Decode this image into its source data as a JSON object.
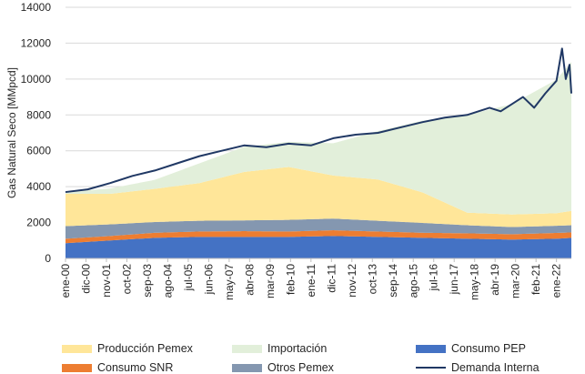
{
  "chart_data": {
    "type": "area",
    "ylabel": "Gas Natural Seco [MMpcd]",
    "xlabel": "",
    "ylim": [
      0,
      14000
    ],
    "yticks": [
      "0",
      "2000",
      "4000",
      "6000",
      "8000",
      "10000",
      "12000",
      "14000"
    ],
    "x_tick_labels": [
      "ene-00",
      "dic-00",
      "nov-01",
      "oct-02",
      "sep-03",
      "ago-04",
      "jul-05",
      "jun-06",
      "may-07",
      "abr-08",
      "mar-09",
      "feb-10",
      "ene-11",
      "dic-11",
      "nov-12",
      "oct-13",
      "sep-14",
      "ago-15",
      "jul-16",
      "jun-17",
      "may-18",
      "abr-19",
      "mar-20",
      "feb-21",
      "ene-22"
    ],
    "x_range": [
      "ene-00",
      "sep-22"
    ],
    "grid": true,
    "legend_position": "bottom",
    "stack_order": [
      "Consumo PEP",
      "Consumo SNR",
      "Otros Pemex",
      "Producción Pemex",
      "Importación"
    ],
    "series": [
      {
        "name": "Consumo PEP",
        "kind": "stacked-area",
        "color": "#4472c4",
        "points": [
          [
            "ene-00",
            850
          ],
          [
            "ene-02",
            1000
          ],
          [
            "ene-04",
            1150
          ],
          [
            "ene-06",
            1200
          ],
          [
            "ene-08",
            1200
          ],
          [
            "ene-10",
            1200
          ],
          [
            "ene-12",
            1250
          ],
          [
            "ene-14",
            1200
          ],
          [
            "ene-16",
            1150
          ],
          [
            "ene-18",
            1100
          ],
          [
            "ene-20",
            1050
          ],
          [
            "ene-22",
            1100
          ],
          [
            "sep-22",
            1150
          ]
        ]
      },
      {
        "name": "Consumo SNR",
        "kind": "stacked-area",
        "color": "#ed7d31",
        "points": [
          [
            "ene-00",
            250
          ],
          [
            "ene-02",
            250
          ],
          [
            "ene-04",
            280
          ],
          [
            "ene-06",
            300
          ],
          [
            "ene-08",
            320
          ],
          [
            "ene-10",
            300
          ],
          [
            "ene-12",
            320
          ],
          [
            "ene-14",
            300
          ],
          [
            "ene-16",
            280
          ],
          [
            "ene-18",
            300
          ],
          [
            "ene-20",
            300
          ],
          [
            "ene-22",
            320
          ],
          [
            "sep-22",
            300
          ]
        ]
      },
      {
        "name": "Otros Pemex",
        "kind": "stacked-area",
        "color": "#8497b0",
        "points": [
          [
            "ene-00",
            700
          ],
          [
            "ene-02",
            650
          ],
          [
            "ene-04",
            600
          ],
          [
            "ene-06",
            600
          ],
          [
            "ene-08",
            600
          ],
          [
            "ene-10",
            650
          ],
          [
            "ene-12",
            650
          ],
          [
            "ene-14",
            600
          ],
          [
            "ene-16",
            550
          ],
          [
            "ene-18",
            450
          ],
          [
            "ene-20",
            400
          ],
          [
            "ene-22",
            400
          ],
          [
            "sep-22",
            400
          ]
        ]
      },
      {
        "name": "Producción Pemex",
        "kind": "stacked-area",
        "color": "#ffe699",
        "points": [
          [
            "ene-00",
            1800
          ],
          [
            "ene-02",
            1700
          ],
          [
            "ene-04",
            1850
          ],
          [
            "ene-06",
            2100
          ],
          [
            "ene-08",
            2700
          ],
          [
            "ene-10",
            2950
          ],
          [
            "ene-12",
            2400
          ],
          [
            "ene-14",
            2300
          ],
          [
            "ene-16",
            1700
          ],
          [
            "ene-18",
            700
          ],
          [
            "ene-20",
            700
          ],
          [
            "ene-22",
            700
          ],
          [
            "sep-22",
            800
          ]
        ]
      },
      {
        "name": "Importación",
        "kind": "stacked-area",
        "color": "#e2efda",
        "points": [
          [
            "ene-00",
            100
          ],
          [
            "ene-02",
            300
          ],
          [
            "ene-04",
            500
          ],
          [
            "ene-06",
            1100
          ],
          [
            "ene-08",
            1400
          ],
          [
            "ene-10",
            1400
          ],
          [
            "ene-12",
            1800
          ],
          [
            "ene-14",
            2700
          ],
          [
            "ene-16",
            4000
          ],
          [
            "ene-18",
            5450
          ],
          [
            "ene-20",
            6150
          ],
          [
            "ene-22",
            7450
          ],
          [
            "sep-22",
            8300
          ]
        ]
      },
      {
        "name": "Demanda Interna",
        "kind": "line",
        "color": "#203864",
        "points": [
          [
            "ene-00",
            3700
          ],
          [
            "ene-01",
            3850
          ],
          [
            "ene-02",
            4200
          ],
          [
            "ene-03",
            4600
          ],
          [
            "ene-04",
            4900
          ],
          [
            "ene-05",
            5300
          ],
          [
            "ene-06",
            5700
          ],
          [
            "ene-07",
            6000
          ],
          [
            "ene-08",
            6300
          ],
          [
            "ene-09",
            6200
          ],
          [
            "ene-10",
            6400
          ],
          [
            "ene-11",
            6300
          ],
          [
            "ene-12",
            6700
          ],
          [
            "ene-13",
            6900
          ],
          [
            "ene-14",
            7000
          ],
          [
            "ene-15",
            7300
          ],
          [
            "ene-16",
            7600
          ],
          [
            "ene-17",
            7850
          ],
          [
            "ene-18",
            8000
          ],
          [
            "ene-19",
            8400
          ],
          [
            "jul-19",
            8200
          ],
          [
            "ene-20",
            8600
          ],
          [
            "jul-20",
            9000
          ],
          [
            "ene-21",
            8400
          ],
          [
            "jul-21",
            9200
          ],
          [
            "ene-22",
            9900
          ],
          [
            "abr-22",
            11700
          ],
          [
            "jun-22",
            10000
          ],
          [
            "ago-22",
            10800
          ],
          [
            "sep-22",
            9200
          ]
        ]
      }
    ]
  }
}
